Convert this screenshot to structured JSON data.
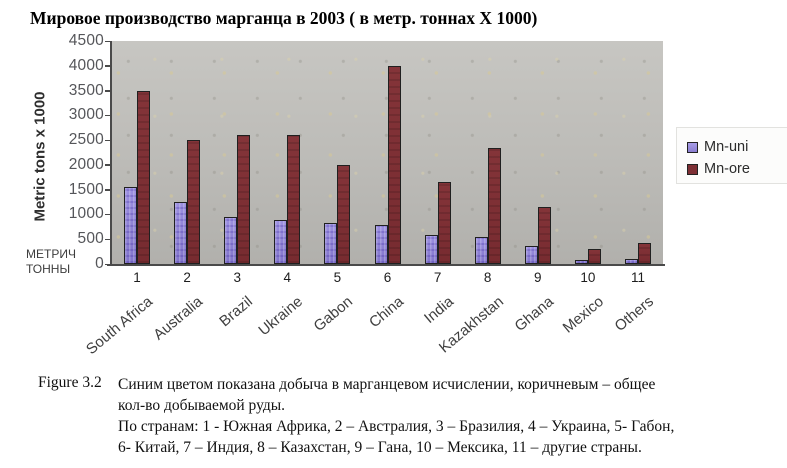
{
  "title": "Мировое производство марганца в 2003 ( в метр. тоннах X 1000)",
  "chart_data": {
    "type": "bar",
    "title": "Мировое производство марганца в 2003 ( в метр. тоннах X 1000)",
    "ylabel": "Metric tons x 1000",
    "y_axis_note_lines": [
      "МЕТРИЧ",
      "ТОННЫ"
    ],
    "categories": [
      "South Africa",
      "Australia",
      "Brazil",
      "Ukraine",
      "Gabon",
      "China",
      "India",
      "Kazakhstan",
      "Ghana",
      "Mexico",
      "Others"
    ],
    "category_numbers": [
      "1",
      "2",
      "3",
      "4",
      "5",
      "6",
      "7",
      "8",
      "9",
      "10",
      "11"
    ],
    "series": [
      {
        "name": "Mn-uni",
        "color": "#8d80d2",
        "values": [
          1550,
          1250,
          950,
          880,
          830,
          780,
          580,
          550,
          360,
          80,
          110
        ]
      },
      {
        "name": "Mn-ore",
        "color": "#7d2f34",
        "values": [
          3500,
          2500,
          2600,
          2600,
          2000,
          4000,
          1650,
          2350,
          1150,
          300,
          430
        ]
      }
    ],
    "ylim": [
      0,
      4500
    ],
    "yticks": [
      0,
      500,
      1000,
      1500,
      2000,
      2500,
      3000,
      3500,
      4000,
      4500
    ],
    "grid": false,
    "legend_position": "right",
    "plot_bg": "#bcbbb7"
  },
  "caption": {
    "label": "Figure 3.2",
    "lines": [
      "Синим цветом показана добыча в марганцевом исчислении, коричневым – общее",
      "кол-во добываемой руды.",
      "По странам: 1 - Южная Африка, 2 – Австралия, 3 – Бразилия, 4 – Украина, 5- Габон,",
      "6- Китай, 7 – Индия, 8 – Казахстан, 9 – Гана, 10 – Мексика, 11 – другие страны."
    ]
  }
}
